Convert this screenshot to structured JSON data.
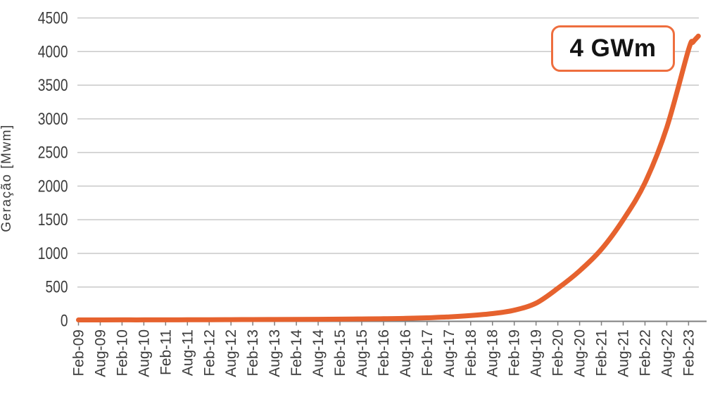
{
  "colors": {
    "line": "#E6622E",
    "annotation_border": "#EE6E3E",
    "grid": "#C9C9C9",
    "axis": "#7F7F7F",
    "tick_text": "#3C3C3C",
    "background": "#FFFFFF"
  },
  "chart_data": {
    "type": "line",
    "title": "",
    "xlabel": "",
    "ylabel": "Geração [Mwm]",
    "ylim": [
      0,
      4500
    ],
    "y_ticks": [
      0,
      500,
      1000,
      1500,
      2000,
      2500,
      3000,
      3500,
      4000,
      4500
    ],
    "grid": "horizontal",
    "legend": "none",
    "categories": [
      "Feb-09",
      "Aug-09",
      "Feb-10",
      "Aug-10",
      "Feb-11",
      "Aug-11",
      "Feb-12",
      "Aug-12",
      "Feb-13",
      "Aug-13",
      "Feb-14",
      "Aug-14",
      "Feb-15",
      "Aug-15",
      "Feb-16",
      "Aug-16",
      "Feb-17",
      "Aug-17",
      "Feb-18",
      "Aug-18",
      "Feb-19",
      "Aug-19",
      "Feb-20",
      "Aug-20",
      "Feb-21",
      "Aug-21",
      "Feb-22",
      "Aug-22",
      "Feb-23"
    ],
    "series": [
      {
        "name": "Geração [Mwm]",
        "color": "#E6622E",
        "points": [
          {
            "x": 0,
            "v": 10
          },
          {
            "x": 1,
            "v": 10
          },
          {
            "x": 2,
            "v": 11
          },
          {
            "x": 3,
            "v": 11
          },
          {
            "x": 4,
            "v": 12
          },
          {
            "x": 5,
            "v": 13
          },
          {
            "x": 6,
            "v": 14
          },
          {
            "x": 7,
            "v": 15
          },
          {
            "x": 8,
            "v": 16
          },
          {
            "x": 9,
            "v": 17
          },
          {
            "x": 10,
            "v": 18
          },
          {
            "x": 11,
            "v": 20
          },
          {
            "x": 12,
            "v": 22
          },
          {
            "x": 13,
            "v": 25
          },
          {
            "x": 14,
            "v": 28
          },
          {
            "x": 15,
            "v": 33
          },
          {
            "x": 16,
            "v": 42
          },
          {
            "x": 17,
            "v": 55
          },
          {
            "x": 18,
            "v": 75
          },
          {
            "x": 19,
            "v": 105
          },
          {
            "x": 20,
            "v": 155
          },
          {
            "x": 21,
            "v": 260
          },
          {
            "x": 22,
            "v": 480
          },
          {
            "x": 23,
            "v": 740
          },
          {
            "x": 24,
            "v": 1060
          },
          {
            "x": 25,
            "v": 1500
          },
          {
            "x": 26,
            "v": 2050
          },
          {
            "x": 27,
            "v": 2870
          },
          {
            "x": 28,
            "v": 4030
          },
          {
            "x": 28.2,
            "v": 4140
          },
          {
            "x": 28.45,
            "v": 4230
          }
        ]
      }
    ],
    "annotation": {
      "text": "4 GWm"
    }
  }
}
